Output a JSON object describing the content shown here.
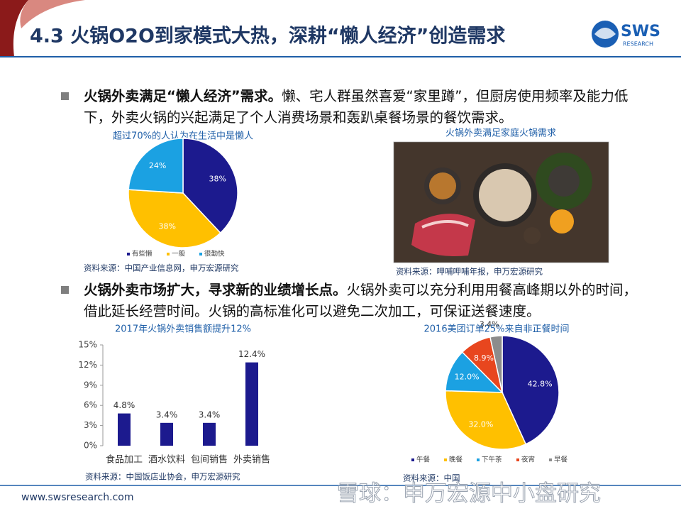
{
  "header": {
    "title": "4.3 火锅O2O到家模式大热，深耕“懒人经济”创造需求",
    "logo_text": "SWS",
    "logo_sub": "RESEARCH"
  },
  "bullets": [
    {
      "bold": "火锅外卖满足“懒人经济”需求。",
      "text": "懒、宅人群虽然喜爱“家里蹲”，但厨房使用频率及能力低下，外卖火锅的兴起满足了个人消费场景和轰趴桌餐场景的餐饮需求。"
    },
    {
      "bold": "火锅外卖市场扩大，寻求新的业绩增长点。",
      "text": "火锅外卖可以充分利用用餐高峰期以外的时间，借此延长经营时间。火锅的高标准化可以避免二次加工，可保证送餐速度。"
    }
  ],
  "image_panel": {
    "title": "火锅外卖满足家庭火锅需求",
    "source": "资料来源：呷哺呷哺年报，申万宏源研究"
  },
  "chart_data": [
    {
      "type": "pie",
      "title": "超过70%的人认为在生活中是懒人",
      "categories": [
        "有些懒",
        "一般",
        "很勤快"
      ],
      "values": [
        38,
        38,
        24
      ],
      "value_labels": [
        "38%",
        "38%",
        "24%"
      ],
      "colors": [
        "#1c1a8e",
        "#ffc000",
        "#1ba1e2"
      ],
      "source": "资料来源：中国产业信息网，申万宏源研究"
    },
    {
      "type": "bar",
      "title": "2017年火锅外卖销售额提升12%",
      "categories": [
        "食品加工",
        "酒水饮料",
        "包间销售",
        "外卖销售"
      ],
      "values": [
        4.8,
        3.4,
        3.4,
        12.4
      ],
      "value_labels": [
        "4.8%",
        "3.4%",
        "3.4%",
        "12.4%"
      ],
      "color": "#1c1a8e",
      "ylim": [
        0,
        15
      ],
      "yticks": [
        {
          "value": 0,
          "label": "0%"
        },
        {
          "value": 3,
          "label": "3%"
        },
        {
          "value": 6,
          "label": "6%"
        },
        {
          "value": 9,
          "label": "9%"
        },
        {
          "value": 12,
          "label": "12%"
        },
        {
          "value": 15,
          "label": "15%"
        }
      ],
      "grid": false,
      "source": "资料来源：中国饭店业协会，申万宏源研究"
    },
    {
      "type": "pie",
      "title": "2016美团订单25%来自非正餐时间",
      "categories": [
        "午餐",
        "晚餐",
        "下午茶",
        "夜宵",
        "早餐"
      ],
      "values": [
        42.8,
        32.0,
        12.0,
        8.9,
        3.4
      ],
      "value_labels": [
        "42.8%",
        "32.0%",
        "12.0%",
        "8.9%",
        "3.4%"
      ],
      "colors": [
        "#1c1a8e",
        "#ffc000",
        "#1ba1e2",
        "#e8461e",
        "#8c8c8c"
      ],
      "source": "资料来源：中国"
    }
  ],
  "footer": {
    "url": "www.swsresearch.com",
    "watermark": "雪球：申万宏源中小盘研究"
  }
}
